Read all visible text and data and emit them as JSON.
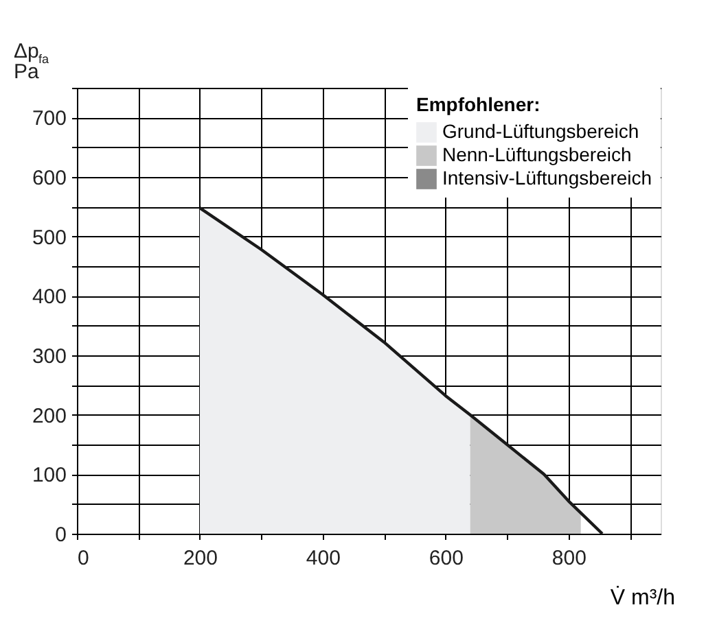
{
  "chart_data": {
    "type": "line",
    "xlabel": "V̇ m³/h",
    "ylabel": "Δp$_{fa}$ Pa",
    "legend_title": "Empfohlener:",
    "xlim": [
      0,
      950
    ],
    "ylim": [
      0,
      750
    ],
    "xticks": [
      0,
      {
        "value": 100,
        "label": null
      },
      200,
      {
        "value": 300,
        "label": null
      },
      400,
      {
        "value": 500,
        "label": null
      },
      600,
      {
        "value": 700,
        "label": null
      },
      800,
      {
        "value": 900,
        "label": null
      }
    ],
    "yticks": [
      0,
      {
        "value": 50,
        "label": null
      },
      100,
      {
        "value": 150,
        "label": null
      },
      200,
      {
        "value": 250,
        "label": null
      },
      300,
      {
        "value": 350,
        "label": null
      },
      400,
      {
        "value": 450,
        "label": null
      },
      500,
      {
        "value": 550,
        "label": null
      },
      600,
      {
        "value": 650,
        "label": null
      },
      700,
      {
        "value": 750,
        "label": null
      }
    ],
    "grid": true,
    "legend": "top right",
    "series": [
      {
        "name": "Grund-Lüftungsbereich",
        "type": "area",
        "color": "#eeeff1",
        "x": [
          200,
          300,
          400,
          500,
          600,
          640
        ],
        "values": [
          548,
          478,
          402,
          322,
          232,
          200
        ]
      },
      {
        "name": "Nenn-Lüftungsbereich",
        "type": "area",
        "color": "#c8c8c8",
        "x": [
          640,
          700,
          760,
          800,
          820
        ],
        "values": [
          200,
          150,
          100,
          55,
          35
        ]
      },
      {
        "name": "Intensiv-Lüftungsbereich",
        "type": "area",
        "color": "#8a8a8a"
      },
      {
        "color": "#1a1a1a",
        "x": [
          200,
          300,
          400,
          500,
          600,
          640,
          700,
          760,
          800,
          855
        ],
        "values": [
          548,
          478,
          402,
          322,
          232,
          200,
          150,
          100,
          55,
          0
        ]
      }
    ]
  }
}
